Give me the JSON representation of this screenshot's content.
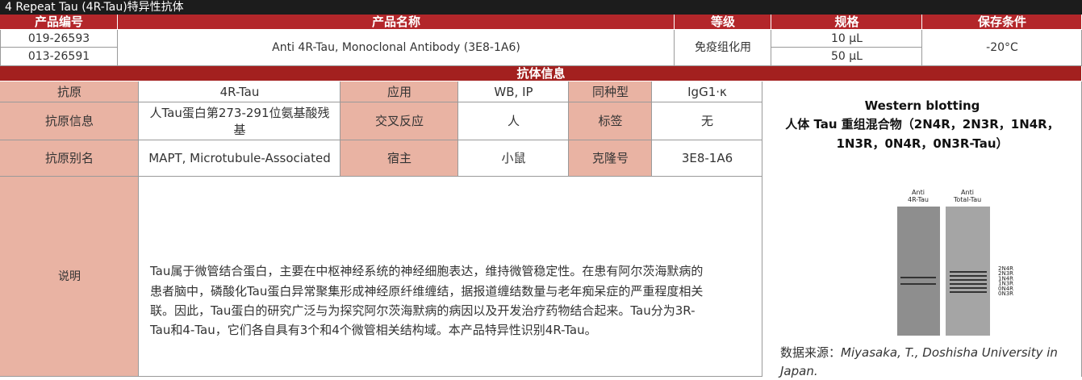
{
  "title": "4 Repeat Tau (4R-Tau)特异性抗体",
  "product_table": {
    "headers": [
      "产品编号",
      "产品名称",
      "等级",
      "规格",
      "保存条件"
    ],
    "codes": [
      "019-26593",
      "013-26591"
    ],
    "name": "Anti 4R-Tau, Monoclonal Antibody (3E8-1A6)",
    "grade": "免疫组化用",
    "specs": [
      "10 μL",
      "50 μL"
    ],
    "storage": "-20°C"
  },
  "info": {
    "title": "抗体信息",
    "rows": [
      [
        "抗原",
        "4R-Tau",
        "应用",
        "WB, IP",
        "同种型",
        "IgG1·κ"
      ],
      [
        "抗原信息",
        "人Tau蛋白第273-291位氨基酸残基",
        "交叉反应",
        "人",
        "标签",
        "无"
      ],
      [
        "抗原别名",
        "MAPT, Microtubule-Associated",
        "宿主",
        "小鼠",
        "克隆号",
        "3E8-1A6"
      ]
    ],
    "description_label": "说明",
    "description": "Tau属于微管结合蛋白，主要在中枢神经系统的神经细胞表达，维持微管稳定性。在患有阿尔茨海默病的患者脑中，磷酸化Tau蛋白异常聚集形成神经原纤维缠结，据报道缠结数量与老年痴呆症的严重程度相关联。因此，Tau蛋白的研究广泛与为探究阿尔茨海默病的病因以及开发治疗药物结合起来。Tau分为3R-Tau和4-Tau，它们各自具有3个和4个微管相关结构域。本产品特异性识别4R-Tau。"
  },
  "figure": {
    "title": "Western blotting",
    "subtitle": "人体 Tau 重组混合物（2N4R，2N3R，1N4R，1N3R，0N4R，0N3R-Tau）",
    "lane_labels": [
      [
        "Anti",
        "4R-Tau"
      ],
      [
        "Anti",
        "Total-Tau"
      ]
    ],
    "band_labels": [
      "2N4R",
      "2N3R",
      "1N4R",
      "1N3R",
      "0N4R",
      "0N3R"
    ],
    "source_label": "数据来源：",
    "source": "Miyasaka, T., Doshisha University in Japan."
  }
}
